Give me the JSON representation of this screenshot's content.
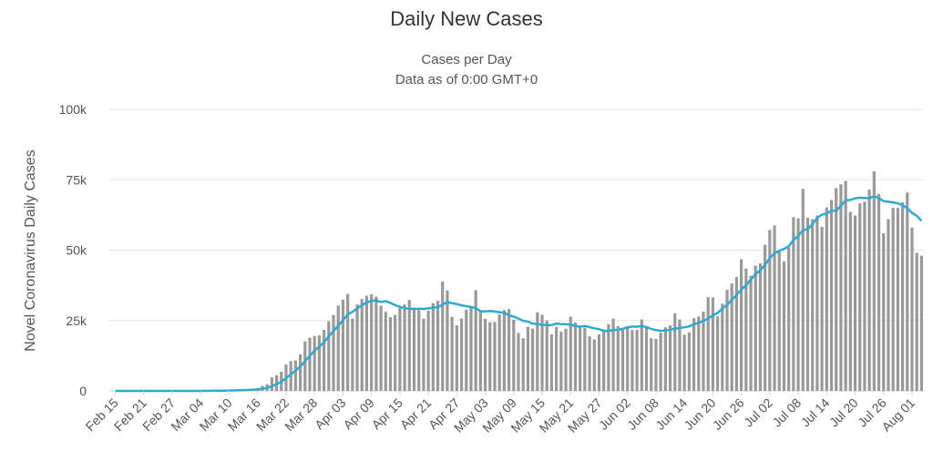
{
  "chart_data": {
    "type": "bar",
    "title": "Daily New Cases",
    "subtitle": "Cases per Day",
    "subtitle2": "Data as of 0:00 GMT+0",
    "ylabel": "Novel Coronavirus Daily Cases",
    "xlabel": "",
    "ylim": [
      0,
      100000
    ],
    "yticks": [
      0,
      25000,
      50000,
      75000,
      100000
    ],
    "ytick_labels": [
      "0",
      "25k",
      "50k",
      "75k",
      "100k"
    ],
    "grid": true,
    "start_date": "Feb 15",
    "xtick_labels": [
      "Feb 15",
      "Feb 21",
      "Feb 27",
      "Mar 04",
      "Mar 10",
      "Mar 16",
      "Mar 22",
      "Mar 28",
      "Apr 03",
      "Apr 09",
      "Apr 15",
      "Apr 21",
      "Apr 27",
      "May 03",
      "May 09",
      "May 15",
      "May 21",
      "May 27",
      "Jun 02",
      "Jun 08",
      "Jun 14",
      "Jun 20",
      "Jun 26",
      "Jul 02",
      "Jul 08",
      "Jul 14",
      "Jul 20",
      "Jul 26",
      "Aug 01"
    ],
    "xtick_interval_days": 6,
    "series": [
      {
        "name": "Daily Cases",
        "type": "bar",
        "color": "#999999",
        "values": [
          0,
          0,
          0,
          0,
          0,
          0,
          11,
          0,
          0,
          0,
          0,
          0,
          0,
          1,
          6,
          8,
          20,
          23,
          31,
          70,
          54,
          140,
          118,
          171,
          264,
          302,
          459,
          488,
          586,
          770,
          993,
          1800,
          2400,
          4800,
          5600,
          6800,
          9400,
          10600,
          10800,
          13000,
          17600,
          18900,
          19500,
          19700,
          21700,
          24800,
          27000,
          30300,
          32400,
          34400,
          25700,
          30700,
          32600,
          33800,
          34300,
          33500,
          30300,
          28100,
          26200,
          27000,
          29800,
          30700,
          32300,
          29600,
          28700,
          25700,
          28500,
          31200,
          32000,
          38800,
          35700,
          26300,
          23300,
          25700,
          28800,
          30000,
          35800,
          28300,
          25600,
          24400,
          24500,
          27200,
          28700,
          29100,
          25300,
          20600,
          18700,
          22800,
          22100,
          27900,
          27000,
          25000,
          20100,
          22700,
          21100,
          22100,
          26400,
          24300,
          22700,
          22500,
          19400,
          18300,
          20100,
          21800,
          23700,
          25700,
          23000,
          21700,
          22300,
          21600,
          21700,
          25400,
          22900,
          18700,
          18500,
          20700,
          22600,
          23300,
          27600,
          25400,
          20000,
          20800,
          25800,
          26400,
          28200,
          33300,
          33200,
          26400,
          31000,
          35900,
          38200,
          40500,
          46800,
          43500,
          40900,
          44500,
          45300,
          51900,
          57200,
          58800,
          49400,
          46000,
          50900,
          61700,
          61300,
          71800,
          61500,
          61000,
          62300,
          58300,
          65200,
          67800,
          72000,
          73400,
          74600,
          63600,
          62300,
          66600,
          67200,
          71500,
          78000,
          70000,
          56000,
          61000,
          65000,
          65000,
          67000,
          70500,
          58000,
          49000,
          48000
        ]
      },
      {
        "name": "7-day moving average",
        "type": "line",
        "color": "#2ea9d3",
        "window": 7
      }
    ]
  }
}
